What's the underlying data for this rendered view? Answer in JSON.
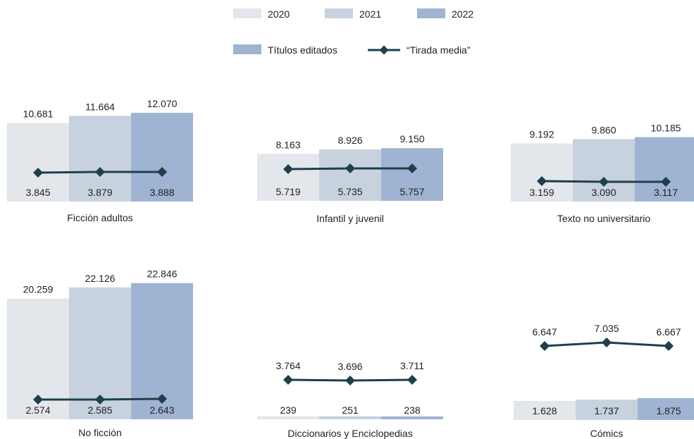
{
  "chart_data": {
    "type": "bar",
    "legend": {
      "years": [
        "2020",
        "2021",
        "2022"
      ],
      "bar_label": "Títulos editados",
      "line_label": "“Tirada media”"
    },
    "colors": {
      "2020": "#e3e6ea",
      "2021": "#c7d2de",
      "2022": "#9fb4d2",
      "line": "#1e3f4c"
    },
    "panels": [
      {
        "category": "Ficción adultos",
        "titles": [
          10681,
          11664,
          12070
        ],
        "titles_labels": [
          "10.681",
          "11.664",
          "12.070"
        ],
        "print_run": [
          3845,
          3879,
          3888
        ],
        "print_run_labels": [
          "3.845",
          "3.879",
          "3.888"
        ]
      },
      {
        "category": "Infantil y juvenil",
        "titles": [
          8163,
          8926,
          9150
        ],
        "titles_labels": [
          "8.163",
          "8.926",
          "9.150"
        ],
        "print_run": [
          5719,
          5735,
          5757
        ],
        "print_run_labels": [
          "5.719",
          "5.735",
          "5.757"
        ]
      },
      {
        "category": "Texto no universitario",
        "titles": [
          9192,
          9860,
          10185
        ],
        "titles_labels": [
          "9.192",
          "9.860",
          "10.185"
        ],
        "print_run": [
          3159,
          3090,
          3117
        ],
        "print_run_labels": [
          "3.159",
          "3.090",
          "3.117"
        ]
      },
      {
        "category": "No ficción",
        "titles": [
          20259,
          22126,
          22846
        ],
        "titles_labels": [
          "20.259",
          "22.126",
          "22.846"
        ],
        "print_run": [
          2574,
          2585,
          2643
        ],
        "print_run_labels": [
          "2.574",
          "2.585",
          "2.643"
        ]
      },
      {
        "category": "Diccionarios y Enciclopedias",
        "titles": [
          239,
          251,
          238
        ],
        "titles_labels": [
          "239",
          "251",
          "238"
        ],
        "print_run": [
          3764,
          3696,
          3711
        ],
        "print_run_labels": [
          "3.764",
          "3.696",
          "3.711"
        ]
      },
      {
        "category": "Cómics",
        "titles": [
          1628,
          1737,
          1875
        ],
        "titles_labels": [
          "1.628",
          "1.737",
          "1.875"
        ],
        "print_run": [
          6647,
          7035,
          6667
        ],
        "print_run_labels": [
          "6.647",
          "7.035",
          "6.667"
        ]
      }
    ]
  }
}
